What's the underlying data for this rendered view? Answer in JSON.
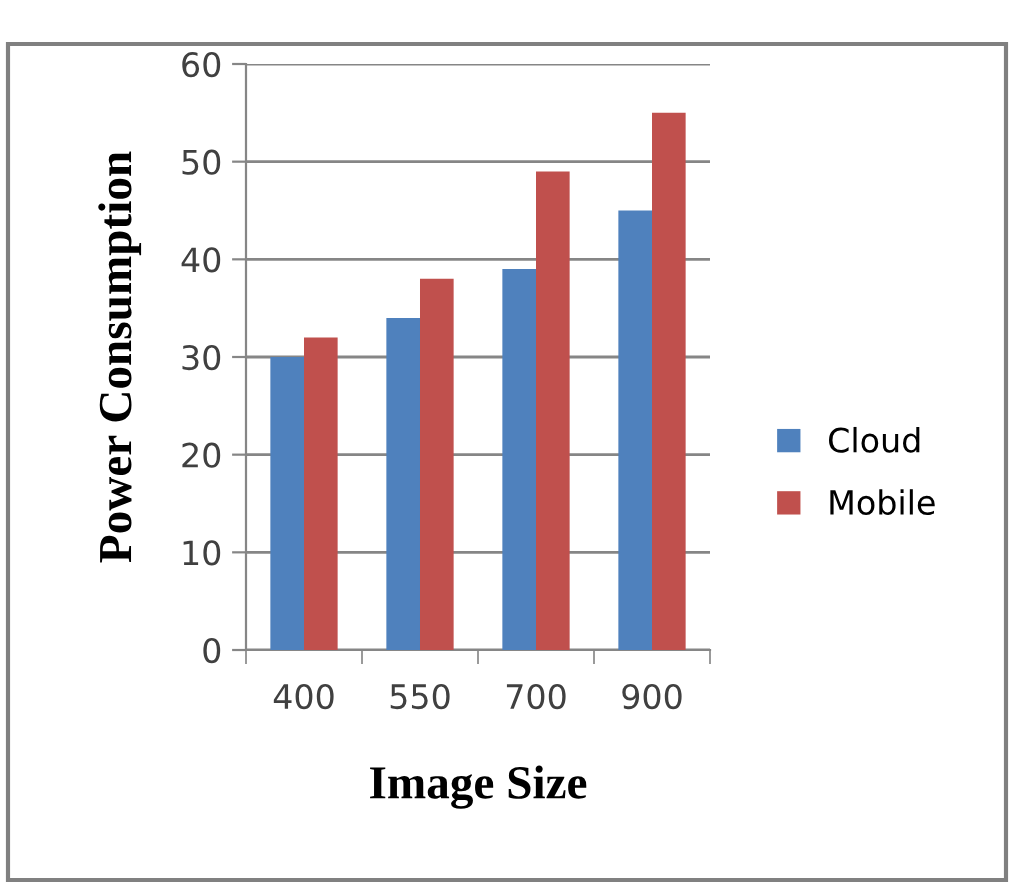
{
  "chart_data": {
    "type": "bar",
    "xlabel": "Image Size",
    "ylabel": "Power Consumption",
    "categories": [
      "400",
      "550",
      "700",
      "900"
    ],
    "series": [
      {
        "name": "Cloud",
        "color": "#4f81bd",
        "values": [
          30,
          34,
          39,
          45
        ]
      },
      {
        "name": "Mobile",
        "color": "#c0504d",
        "values": [
          32,
          38,
          49,
          55
        ]
      }
    ],
    "ylim": [
      0,
      60
    ],
    "yticks": [
      0,
      10,
      20,
      30,
      40,
      50,
      60
    ],
    "grid": "y",
    "legend": "right"
  }
}
